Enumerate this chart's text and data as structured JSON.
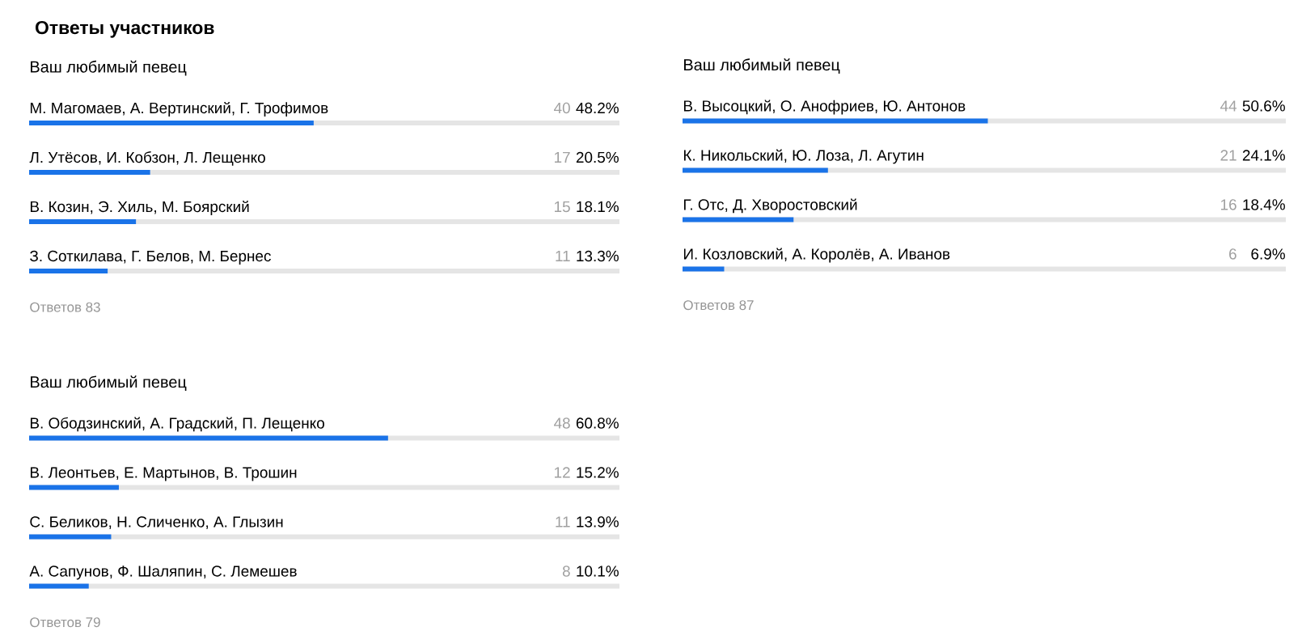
{
  "chart_data": [
    {
      "type": "other",
      "title": "Ответы участников"
    },
    {
      "type": "bar",
      "orientation": "horizontal",
      "title": "Ваш любимый певец",
      "categories": [
        "М. Магомаев, А. Вертинский, Г. Трофимов",
        "Л. Утёсов, И. Кобзон, Л. Лещенко",
        "В. Козин, Э. Хиль, М. Боярский",
        "З. Соткилава, Г. Белов, М. Бернес"
      ],
      "values": [
        48.2,
        20.5,
        18.1,
        13.3
      ],
      "value_labels": [
        "48.2%",
        "20.5%",
        "18.1%",
        "13.3%"
      ],
      "color": "#1a73e8",
      "xlim": [
        0,
        100
      ],
      "tick_labels": false,
      "annotations": [
        "40",
        "17",
        "15",
        "11",
        "Ответов 83"
      ]
    },
    {
      "type": "bar",
      "orientation": "horizontal",
      "title": "Ваш любимый певец",
      "categories": [
        "В. Высоцкий, О. Анофриев, Ю. Антонов",
        "К. Никольский, Ю. Лоза, Л. Агутин",
        "Г. Отс, Д. Хворостовский",
        "И. Козловский, А. Королёв, А. Иванов"
      ],
      "values": [
        50.6,
        24.1,
        18.4,
        6.9
      ],
      "value_labels": [
        "50.6%",
        "24.1%",
        "18.4%",
        "6.9%"
      ],
      "color": "#1a73e8",
      "xlim": [
        0,
        100
      ],
      "tick_labels": false,
      "annotations": [
        "44",
        "21",
        "16",
        "6",
        "Ответов 87"
      ]
    },
    {
      "type": "bar",
      "orientation": "horizontal",
      "title": "Ваш любимый певец",
      "categories": [
        "В. Ободзинский, А. Градский, П. Лещенко",
        "В. Леонтьев, Е. Мартынов, В. Трошин",
        "С. Беликов, Н. Сличенко, А. Глызин",
        "А. Сапунов, Ф. Шаляпин, С. Лемешев"
      ],
      "values": [
        60.8,
        15.2,
        13.9,
        10.1
      ],
      "value_labels": [
        "60.8%",
        "15.2%",
        "13.9%",
        "10.1%"
      ],
      "color": "#1a73e8",
      "xlim": [
        0,
        100
      ],
      "tick_labels": false,
      "annotations": [
        "48",
        "12",
        "11",
        "8",
        "Ответов 79"
      ]
    }
  ]
}
